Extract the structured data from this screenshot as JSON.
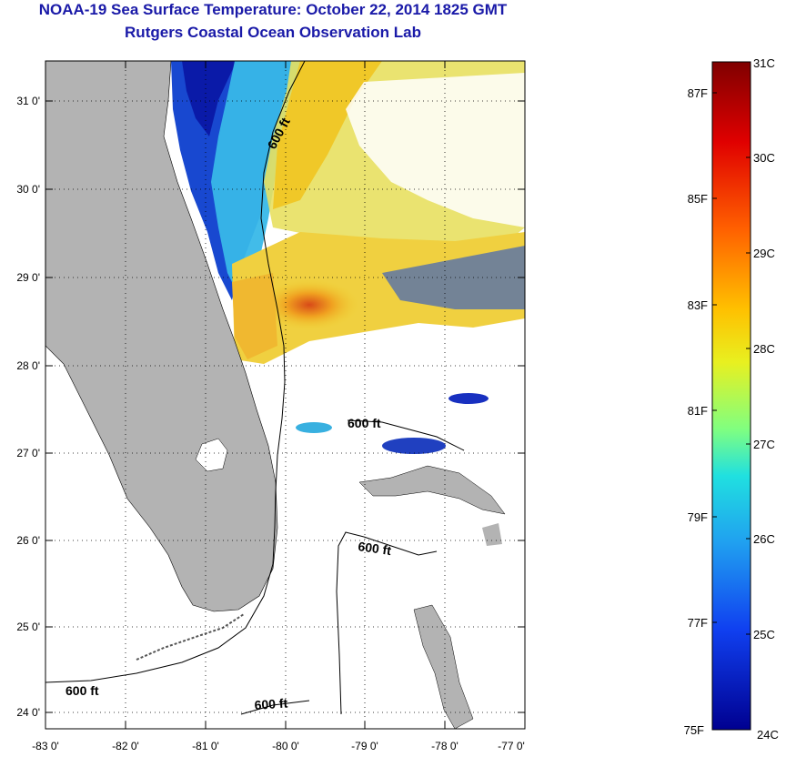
{
  "header": {
    "title": "NOAA-19 Sea Surface Temperature:  October 22, 2014 1825 GMT",
    "subtitle": "Rutgers Coastal Ocean Observation Lab"
  },
  "map": {
    "lat_labels": [
      "31 0'",
      "30 0'",
      "29 0'",
      "28 0'",
      "27 0'",
      "26 0'",
      "25 0'",
      "24 0'"
    ],
    "lon_labels": [
      "-83 0'",
      "-82 0'",
      "-81 0'",
      "-80 0'",
      "-79 0'",
      "-78 0'",
      "-77 0'"
    ],
    "contour_labels": [
      "600 ft",
      "600 ft",
      "600 ft",
      "600 ft",
      "600 ft"
    ],
    "colors": {
      "land": "#b3b3b3",
      "cloud": "#ffffff",
      "warm": "#e8a020",
      "cool": "#1030c8"
    }
  },
  "colorbar": {
    "celsius_labels": [
      "31C",
      "30C",
      "29C",
      "28C",
      "27C",
      "26C",
      "25C",
      "24C"
    ],
    "fahrenheit_labels": [
      "87F",
      "85F",
      "83F",
      "81F",
      "79F",
      "77F",
      "75F"
    ],
    "range_c": [
      24,
      31
    ]
  }
}
